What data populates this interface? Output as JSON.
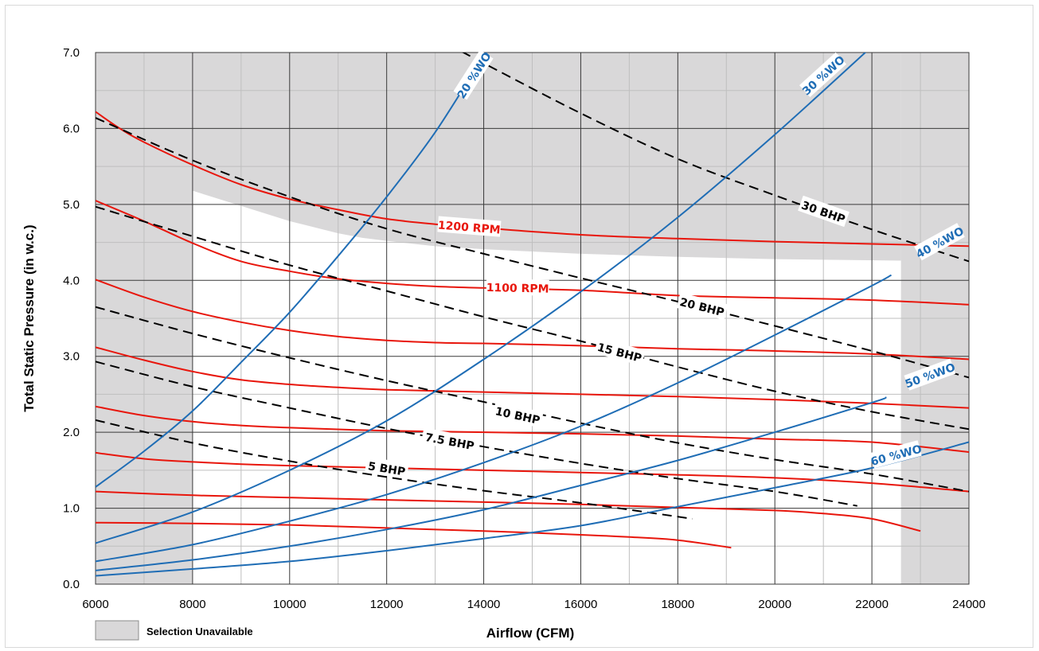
{
  "chart_data": {
    "type": "line",
    "xlabel": "Airflow (CFM)",
    "ylabel": "Total Static Pressure (in w.c.)",
    "xlim": [
      6000,
      24000
    ],
    "ylim": [
      0,
      7
    ],
    "x_ticks": [
      "6000",
      "8000",
      "10000",
      "12000",
      "14000",
      "16000",
      "18000",
      "20000",
      "22000",
      "24000"
    ],
    "y_ticks": [
      "0.0",
      "1.0",
      "2.0",
      "3.0",
      "4.0",
      "5.0",
      "6.0",
      "7.0"
    ],
    "minor_grid": true,
    "colors": {
      "rpm": "#e8160c",
      "bhp": "#000000",
      "wo": "#1f6db5",
      "unavailable": "#d9d8d9",
      "grid": "#3a3a3a",
      "minor_grid": "#bfbfbf"
    },
    "unavailable_region": {
      "left_below_x": 8000,
      "right_above_x": 22600,
      "upper_boundary": [
        [
          8000,
          5.18
        ],
        [
          9000,
          4.98
        ],
        [
          10000,
          4.78
        ],
        [
          11000,
          4.62
        ],
        [
          11500,
          4.56
        ],
        [
          12000,
          4.52
        ],
        [
          13000,
          4.45
        ],
        [
          14000,
          4.41
        ],
        [
          16000,
          4.35
        ],
        [
          18000,
          4.31
        ],
        [
          20000,
          4.28
        ],
        [
          22600,
          4.26
        ]
      ]
    },
    "rpm_curves": [
      {
        "label": "1200 RPM",
        "label_at": [
          13700,
          4.7
        ],
        "points": [
          [
            6000,
            6.22
          ],
          [
            6500,
            6.0
          ],
          [
            7000,
            5.82
          ],
          [
            8000,
            5.52
          ],
          [
            9000,
            5.26
          ],
          [
            10000,
            5.07
          ],
          [
            11000,
            4.93
          ],
          [
            12000,
            4.81
          ],
          [
            13000,
            4.74
          ],
          [
            14000,
            4.69
          ],
          [
            16000,
            4.6
          ],
          [
            18000,
            4.55
          ],
          [
            20000,
            4.51
          ],
          [
            22000,
            4.48
          ],
          [
            24000,
            4.45
          ]
        ]
      },
      {
        "label": "1100 RPM",
        "label_at": [
          14700,
          3.9
        ],
        "points": [
          [
            6000,
            5.05
          ],
          [
            7000,
            4.78
          ],
          [
            8000,
            4.49
          ],
          [
            9000,
            4.25
          ],
          [
            10000,
            4.12
          ],
          [
            11000,
            4.02
          ],
          [
            12000,
            3.96
          ],
          [
            13000,
            3.92
          ],
          [
            14000,
            3.9
          ],
          [
            16000,
            3.87
          ],
          [
            18000,
            3.8
          ],
          [
            20000,
            3.77
          ],
          [
            22000,
            3.74
          ],
          [
            24000,
            3.68
          ]
        ]
      },
      {
        "label": "",
        "points": [
          [
            6000,
            4.01
          ],
          [
            7000,
            3.78
          ],
          [
            8000,
            3.59
          ],
          [
            9000,
            3.45
          ],
          [
            10000,
            3.34
          ],
          [
            11000,
            3.26
          ],
          [
            12000,
            3.21
          ],
          [
            13000,
            3.18
          ],
          [
            14000,
            3.17
          ],
          [
            16000,
            3.14
          ],
          [
            18000,
            3.1
          ],
          [
            20000,
            3.07
          ],
          [
            22000,
            3.03
          ],
          [
            24000,
            2.96
          ]
        ]
      },
      {
        "label": "",
        "points": [
          [
            6000,
            3.12
          ],
          [
            7000,
            2.95
          ],
          [
            8000,
            2.8
          ],
          [
            9000,
            2.69
          ],
          [
            10000,
            2.63
          ],
          [
            11000,
            2.59
          ],
          [
            12000,
            2.56
          ],
          [
            14000,
            2.53
          ],
          [
            16000,
            2.5
          ],
          [
            18000,
            2.47
          ],
          [
            20000,
            2.43
          ],
          [
            22000,
            2.38
          ],
          [
            24000,
            2.32
          ]
        ]
      },
      {
        "label": "",
        "points": [
          [
            6000,
            2.34
          ],
          [
            7000,
            2.22
          ],
          [
            8000,
            2.14
          ],
          [
            9000,
            2.09
          ],
          [
            10000,
            2.06
          ],
          [
            12000,
            2.02
          ],
          [
            14000,
            2.0
          ],
          [
            16000,
            1.98
          ],
          [
            18000,
            1.95
          ],
          [
            20000,
            1.91
          ],
          [
            22000,
            1.87
          ],
          [
            24000,
            1.74
          ]
        ]
      },
      {
        "label": "",
        "points": [
          [
            6000,
            1.73
          ],
          [
            7000,
            1.65
          ],
          [
            8000,
            1.61
          ],
          [
            9000,
            1.58
          ],
          [
            10000,
            1.56
          ],
          [
            12000,
            1.53
          ],
          [
            14000,
            1.5
          ],
          [
            16000,
            1.47
          ],
          [
            18000,
            1.44
          ],
          [
            20000,
            1.4
          ],
          [
            22000,
            1.33
          ],
          [
            24000,
            1.22
          ]
        ]
      },
      {
        "label": "",
        "points": [
          [
            6000,
            1.22
          ],
          [
            8000,
            1.17
          ],
          [
            10000,
            1.14
          ],
          [
            12000,
            1.11
          ],
          [
            14000,
            1.08
          ],
          [
            16000,
            1.05
          ],
          [
            18000,
            1.01
          ],
          [
            20000,
            0.97
          ],
          [
            21000,
            0.93
          ],
          [
            22000,
            0.86
          ],
          [
            23000,
            0.7
          ]
        ]
      },
      {
        "label": "",
        "points": [
          [
            6000,
            0.81
          ],
          [
            8000,
            0.8
          ],
          [
            10000,
            0.78
          ],
          [
            12000,
            0.74
          ],
          [
            14000,
            0.7
          ],
          [
            16000,
            0.65
          ],
          [
            17000,
            0.62
          ],
          [
            18000,
            0.58
          ],
          [
            19100,
            0.48
          ]
        ]
      }
    ],
    "bhp_curves": [
      {
        "label": "30 BHP",
        "label_at": [
          21000,
          4.9
        ],
        "points": [
          [
            13000,
            7.2
          ],
          [
            14000,
            6.86
          ],
          [
            16000,
            6.2
          ],
          [
            18000,
            5.6
          ],
          [
            20000,
            5.12
          ],
          [
            22000,
            4.67
          ],
          [
            24000,
            4.25
          ]
        ]
      },
      {
        "label": "20 BHP",
        "label_at": [
          18500,
          3.65
        ],
        "points": [
          [
            6000,
            6.14
          ],
          [
            8000,
            5.58
          ],
          [
            10000,
            5.1
          ],
          [
            12000,
            4.68
          ],
          [
            14000,
            4.35
          ],
          [
            16000,
            4.03
          ],
          [
            18000,
            3.72
          ],
          [
            20000,
            3.4
          ],
          [
            22000,
            3.07
          ],
          [
            24000,
            2.72
          ]
        ]
      },
      {
        "label": "15 BHP",
        "label_at": [
          16800,
          3.05
        ],
        "points": [
          [
            6000,
            4.97
          ],
          [
            8000,
            4.58
          ],
          [
            10000,
            4.2
          ],
          [
            12000,
            3.86
          ],
          [
            14000,
            3.52
          ],
          [
            16000,
            3.2
          ],
          [
            18000,
            2.86
          ],
          [
            20000,
            2.54
          ],
          [
            22000,
            2.27
          ],
          [
            24000,
            2.04
          ]
        ]
      },
      {
        "label": "10 BHP",
        "label_at": [
          14700,
          2.22
        ],
        "points": [
          [
            6000,
            3.65
          ],
          [
            8000,
            3.3
          ],
          [
            10000,
            2.98
          ],
          [
            12000,
            2.68
          ],
          [
            14000,
            2.4
          ],
          [
            16000,
            2.12
          ],
          [
            18000,
            1.86
          ],
          [
            20000,
            1.64
          ],
          [
            22000,
            1.45
          ],
          [
            24000,
            1.22
          ]
        ]
      },
      {
        "label": "7.5 BHP",
        "label_at": [
          13300,
          1.88
        ],
        "points": [
          [
            6000,
            2.93
          ],
          [
            8000,
            2.6
          ],
          [
            10000,
            2.32
          ],
          [
            12000,
            2.05
          ],
          [
            14000,
            1.81
          ],
          [
            16000,
            1.59
          ],
          [
            18000,
            1.39
          ],
          [
            20000,
            1.22
          ],
          [
            21700,
            1.03
          ]
        ]
      },
      {
        "label": "5 BHP",
        "label_at": [
          12000,
          1.52
        ],
        "points": [
          [
            6000,
            2.16
          ],
          [
            8000,
            1.86
          ],
          [
            10000,
            1.62
          ],
          [
            12000,
            1.41
          ],
          [
            14000,
            1.23
          ],
          [
            16000,
            1.07
          ],
          [
            18300,
            0.86
          ]
        ]
      }
    ],
    "wo_curves": [
      {
        "label": "20 %WO",
        "label_at": [
          13800,
          6.7
        ],
        "points": [
          [
            6000,
            1.28
          ],
          [
            7000,
            1.75
          ],
          [
            8000,
            2.28
          ],
          [
            9000,
            2.92
          ],
          [
            10000,
            3.58
          ],
          [
            11000,
            4.32
          ],
          [
            12000,
            5.1
          ],
          [
            13000,
            5.95
          ],
          [
            14000,
            6.95
          ],
          [
            14200,
            7.05
          ]
        ]
      },
      {
        "label": "30 %WO",
        "label_at": [
          21000,
          6.7
        ],
        "points": [
          [
            6000,
            0.54
          ],
          [
            8000,
            0.95
          ],
          [
            10000,
            1.5
          ],
          [
            12000,
            2.15
          ],
          [
            14000,
            2.96
          ],
          [
            16000,
            3.85
          ],
          [
            18000,
            4.83
          ],
          [
            20000,
            5.92
          ],
          [
            22000,
            7.08
          ]
        ]
      },
      {
        "label": "40 %WO",
        "label_at": [
          23400,
          4.5
        ],
        "points": [
          [
            6000,
            0.3
          ],
          [
            8000,
            0.52
          ],
          [
            10000,
            0.83
          ],
          [
            12000,
            1.18
          ],
          [
            14000,
            1.6
          ],
          [
            16000,
            2.08
          ],
          [
            18000,
            2.65
          ],
          [
            20000,
            3.28
          ],
          [
            22000,
            3.93
          ],
          [
            22400,
            4.07
          ]
        ]
      },
      {
        "label": "50 %WO",
        "label_at": [
          23200,
          2.75
        ],
        "points": [
          [
            6000,
            0.18
          ],
          [
            8000,
            0.32
          ],
          [
            10000,
            0.5
          ],
          [
            12000,
            0.72
          ],
          [
            14000,
            0.98
          ],
          [
            16000,
            1.3
          ],
          [
            18000,
            1.63
          ],
          [
            20000,
            2.0
          ],
          [
            22000,
            2.39
          ],
          [
            22300,
            2.46
          ]
        ]
      },
      {
        "label": "60 %WO",
        "label_at": [
          22500,
          1.7
        ],
        "points": [
          [
            6000,
            0.11
          ],
          [
            8000,
            0.2
          ],
          [
            10000,
            0.3
          ],
          [
            12000,
            0.44
          ],
          [
            14000,
            0.6
          ],
          [
            16000,
            0.77
          ],
          [
            18000,
            1.02
          ],
          [
            20000,
            1.27
          ],
          [
            22000,
            1.53
          ],
          [
            24000,
            1.87
          ]
        ]
      }
    ],
    "legend": {
      "position": "bottom-left",
      "entries": [
        {
          "label": "Selection Unavailable",
          "swatch": "unavailable"
        }
      ]
    }
  }
}
